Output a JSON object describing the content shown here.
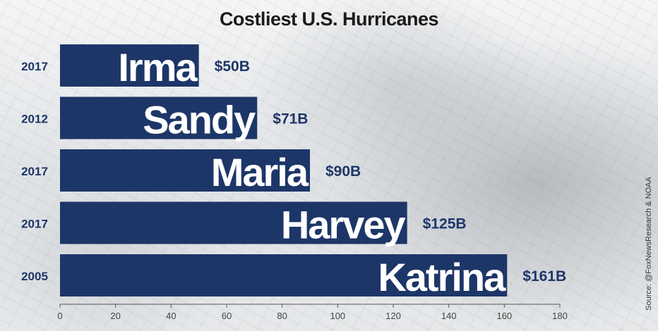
{
  "chart_data": {
    "type": "bar",
    "orientation": "horizontal",
    "title": "Costliest U.S. Hurricanes",
    "categories": [
      "Irma",
      "Sandy",
      "Maria",
      "Harvey",
      "Katrina"
    ],
    "years": [
      "2017",
      "2012",
      "2017",
      "2017",
      "2005"
    ],
    "values": [
      50,
      71,
      90,
      125,
      161
    ],
    "value_labels": [
      "$50B",
      "$71B",
      "$90B",
      "$125B",
      "$161B"
    ],
    "xlim": [
      0,
      180
    ],
    "xticks": [
      0,
      20,
      40,
      60,
      80,
      100,
      120,
      140,
      160,
      180
    ],
    "grid": false,
    "bar_color": "#1d3668",
    "label_color": "#1d3668",
    "source": "Source: @FoxNewsResearch & NOAA"
  }
}
